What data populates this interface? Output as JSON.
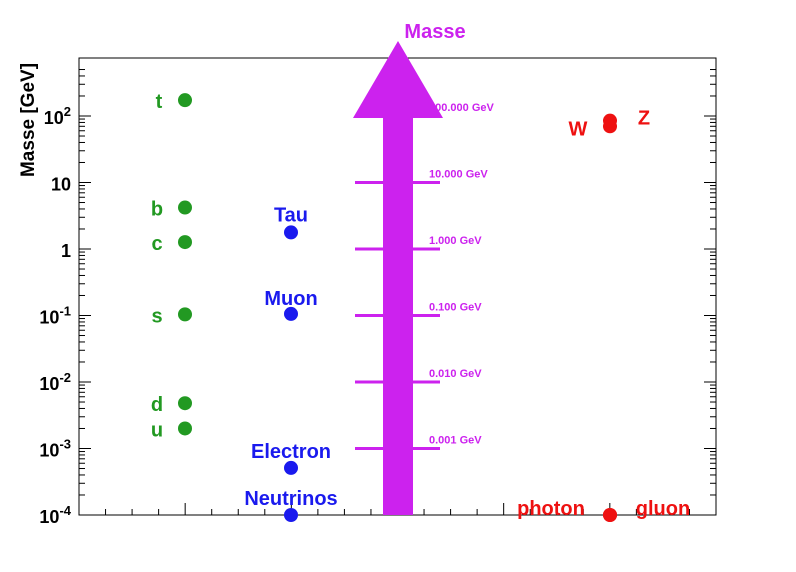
{
  "chart_data": {
    "type": "scatter",
    "title": "",
    "ylabel": "Masse [GeV]",
    "xlabel": "",
    "yscale": "log",
    "ylim": [
      0.0001,
      500
    ],
    "grid": false,
    "y_ticks": [
      {
        "value": 0.0001,
        "base": "10",
        "exp": "-4"
      },
      {
        "value": 0.001,
        "base": "10",
        "exp": "-3"
      },
      {
        "value": 0.01,
        "base": "10",
        "exp": "-2"
      },
      {
        "value": 0.1,
        "base": "10",
        "exp": "-1"
      },
      {
        "value": 1,
        "base": "1",
        "exp": ""
      },
      {
        "value": 10,
        "base": "10",
        "exp": ""
      },
      {
        "value": 100,
        "base": "10",
        "exp": "2"
      }
    ],
    "series": [
      {
        "color": "#229922",
        "column": 1,
        "points": [
          {
            "label": "t",
            "y": 173
          },
          {
            "label": "b",
            "y": 4.2
          },
          {
            "label": "c",
            "y": 1.27
          },
          {
            "label": "s",
            "y": 0.104
          },
          {
            "label": "d",
            "y": 0.0048
          },
          {
            "label": "u",
            "y": 0.002
          }
        ]
      },
      {
        "color": "#1a1aee",
        "column": 2,
        "points": [
          {
            "label": "Tau",
            "y": 1.777
          },
          {
            "label": "Muon",
            "y": 0.1057
          },
          {
            "label": "Electron",
            "y": 0.000511
          },
          {
            "label": "Neutrinos",
            "y": 0.0001
          }
        ]
      },
      {
        "color": "#ee1111",
        "column": 4,
        "points": [
          {
            "label": "W",
            "y": 80.4
          },
          {
            "label": "Z",
            "y": 91.2
          },
          {
            "label": "photon",
            "y": 0.0001
          },
          {
            "label": "gluon",
            "y": 0.0001
          }
        ]
      }
    ],
    "arrow": {
      "title": "Masse",
      "color": "#cc22ee",
      "labels": [
        {
          "text": "100.000 GeV",
          "y": 100
        },
        {
          "text": "10.000 GeV",
          "y": 10
        },
        {
          "text": "1.000 GeV",
          "y": 1
        },
        {
          "text": "0.100 GeV",
          "y": 0.1
        },
        {
          "text": "0.010 GeV",
          "y": 0.01
        },
        {
          "text": "0.001 GeV",
          "y": 0.001
        }
      ]
    }
  }
}
